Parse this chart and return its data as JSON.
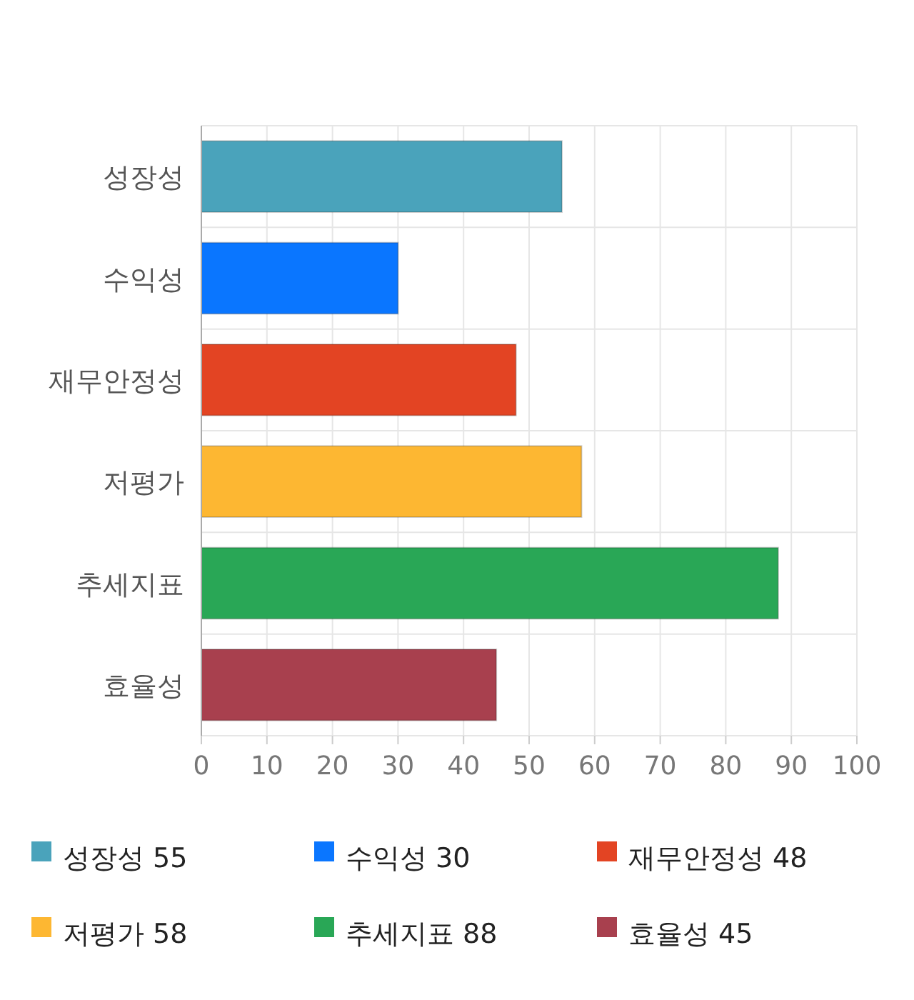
{
  "chart_data": {
    "type": "bar",
    "orientation": "horizontal",
    "categories": [
      "성장성",
      "수익성",
      "재무안정성",
      "저평가",
      "추세지표",
      "효율성"
    ],
    "series": [
      {
        "name": "성장성 55",
        "color": "#4aa3bb",
        "values": [
          55,
          null,
          null,
          null,
          null,
          null
        ]
      },
      {
        "name": "수익성 30",
        "color": "#0a76ff",
        "values": [
          null,
          30,
          null,
          null,
          null,
          null
        ]
      },
      {
        "name": "재무안정성 48",
        "color": "#e34423",
        "values": [
          null,
          null,
          48,
          null,
          null,
          null
        ]
      },
      {
        "name": "저평가 58",
        "color": "#fdb732",
        "values": [
          null,
          null,
          null,
          58,
          null,
          null
        ]
      },
      {
        "name": "추세지표 88",
        "color": "#29a756",
        "values": [
          null,
          null,
          null,
          null,
          88,
          null
        ]
      },
      {
        "name": "효율성 45",
        "color": "#a8404e",
        "values": [
          null,
          null,
          null,
          null,
          null,
          45
        ]
      }
    ],
    "xlim": [
      0,
      100
    ],
    "xticks": [
      0,
      10,
      20,
      30,
      40,
      50,
      60,
      70,
      80,
      90,
      100
    ],
    "grid": true,
    "legend": "bottom"
  }
}
